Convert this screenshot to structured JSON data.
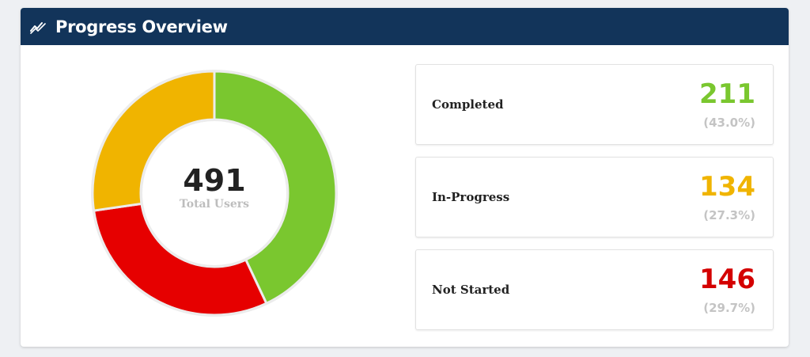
{
  "header": {
    "title": "Progress Overview",
    "icon": "trend-line-icon",
    "background": "#12345a"
  },
  "chart_data": {
    "type": "pie",
    "variant": "donut",
    "categories": [
      "Completed",
      "In-Progress",
      "Not Started"
    ],
    "values": [
      211,
      134,
      146
    ],
    "colors": [
      "#7ac72f",
      "#f0b400",
      "#e60000"
    ],
    "center": {
      "value": "491",
      "label": "Total Users"
    }
  },
  "stats": [
    {
      "label": "Completed",
      "value": "211",
      "percent": "(43.0%)",
      "color": "#7ac72f"
    },
    {
      "label": "In-Progress",
      "value": "134",
      "percent": "(27.3%)",
      "color": "#f0b400"
    },
    {
      "label": "Not Started",
      "value": "146",
      "percent": "(29.7%)",
      "color": "#d40000"
    }
  ]
}
